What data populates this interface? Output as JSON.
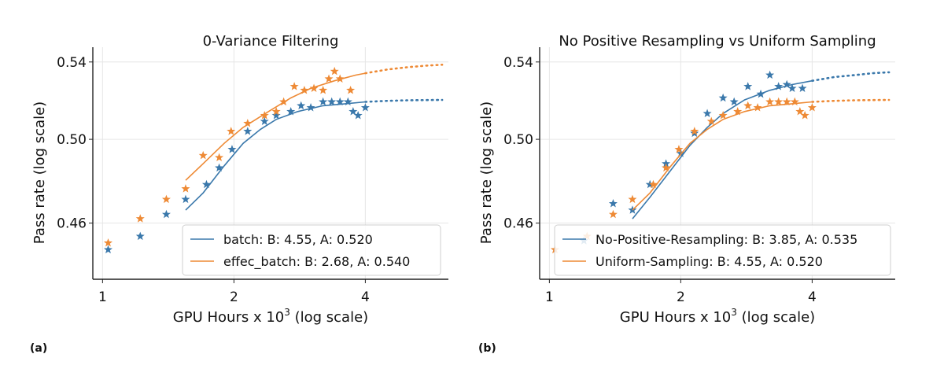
{
  "colors": {
    "blue": "#3a78ab",
    "orange": "#ee8a35"
  },
  "chart_data": [
    {
      "type": "scatter",
      "panel": "(a)",
      "title": "0-Variance Filtering",
      "xlabel": "GPU Hours x 10",
      "xlabel_sup": "3",
      "xlabel_suffix": " (log scale)",
      "ylabel": "Pass rate (log scale)",
      "xscale": "log",
      "yscale": "log",
      "xlim": [
        0.95,
        6.2
      ],
      "ylim": [
        0.435,
        0.548
      ],
      "xticks": [
        1,
        2,
        4
      ],
      "xtick_labels": [
        "1",
        "2",
        "4"
      ],
      "yticks": [
        0.46,
        0.5,
        0.54
      ],
      "ytick_labels": [
        "0.46",
        "0.50",
        "0.54"
      ],
      "legend_position": "lower-right",
      "series": [
        {
          "name": "batch: B: 4.55, A: 0.520",
          "color": "blue",
          "points": [
            [
              1.03,
              0.448
            ],
            [
              1.22,
              0.454
            ],
            [
              1.4,
              0.464
            ],
            [
              1.55,
              0.471
            ],
            [
              1.73,
              0.478
            ],
            [
              1.85,
              0.486
            ],
            [
              1.98,
              0.495
            ],
            [
              2.15,
              0.504
            ],
            [
              2.35,
              0.509
            ],
            [
              2.5,
              0.512
            ],
            [
              2.7,
              0.514
            ],
            [
              2.85,
              0.517
            ],
            [
              3.0,
              0.516
            ],
            [
              3.2,
              0.519
            ],
            [
              3.35,
              0.519
            ],
            [
              3.5,
              0.519
            ],
            [
              3.65,
              0.519
            ],
            [
              3.75,
              0.514
            ],
            [
              3.85,
              0.512
            ],
            [
              4.0,
              0.516
            ]
          ],
          "fit": [
            [
              1.55,
              0.466
            ],
            [
              1.7,
              0.474
            ],
            [
              1.9,
              0.487
            ],
            [
              2.1,
              0.498
            ],
            [
              2.3,
              0.505
            ],
            [
              2.5,
              0.51
            ],
            [
              2.8,
              0.514
            ],
            [
              3.2,
              0.517
            ],
            [
              3.6,
              0.518
            ],
            [
              4.0,
              0.519
            ]
          ],
          "extrap": [
            [
              4.0,
              0.519
            ],
            [
              4.5,
              0.5195
            ],
            [
              5.0,
              0.5198
            ],
            [
              5.5,
              0.5199
            ],
            [
              6.0,
              0.52
            ]
          ]
        },
        {
          "name": "effec_batch: B: 2.68, A: 0.540",
          "color": "orange",
          "points": [
            [
              1.03,
              0.451
            ],
            [
              1.22,
              0.462
            ],
            [
              1.4,
              0.471
            ],
            [
              1.55,
              0.476
            ],
            [
              1.7,
              0.492
            ],
            [
              1.85,
              0.491
            ],
            [
              1.97,
              0.504
            ],
            [
              2.15,
              0.508
            ],
            [
              2.35,
              0.512
            ],
            [
              2.5,
              0.514
            ],
            [
              2.6,
              0.519
            ],
            [
              2.75,
              0.527
            ],
            [
              2.9,
              0.525
            ],
            [
              3.05,
              0.526
            ],
            [
              3.2,
              0.525
            ],
            [
              3.3,
              0.531
            ],
            [
              3.4,
              0.535
            ],
            [
              3.5,
              0.531
            ],
            [
              3.7,
              0.525
            ]
          ],
          "fit": [
            [
              1.55,
              0.48
            ],
            [
              1.7,
              0.488
            ],
            [
              1.9,
              0.498
            ],
            [
              2.1,
              0.506
            ],
            [
              2.4,
              0.514
            ],
            [
              2.7,
              0.521
            ],
            [
              3.0,
              0.526
            ],
            [
              3.4,
              0.53
            ],
            [
              3.8,
              0.533
            ],
            [
              4.0,
              0.534
            ]
          ],
          "extrap": [
            [
              4.0,
              0.534
            ],
            [
              4.5,
              0.536
            ],
            [
              5.0,
              0.5372
            ],
            [
              5.5,
              0.538
            ],
            [
              6.0,
              0.5385
            ]
          ]
        }
      ]
    },
    {
      "type": "scatter",
      "panel": "(b)",
      "title": "No Positive Resampling vs Uniform Sampling",
      "xlabel": "GPU Hours x 10",
      "xlabel_sup": "3",
      "xlabel_suffix": " (log scale)",
      "ylabel": "Pass rate (log scale)",
      "xscale": "log",
      "yscale": "log",
      "xlim": [
        0.95,
        6.2
      ],
      "ylim": [
        0.435,
        0.548
      ],
      "xticks": [
        1,
        2,
        4
      ],
      "xtick_labels": [
        "1",
        "2",
        "4"
      ],
      "yticks": [
        0.46,
        0.5,
        0.54
      ],
      "ytick_labels": [
        "0.46",
        "0.50",
        "0.54"
      ],
      "legend_position": "lower-right",
      "series": [
        {
          "name": "No-Positive-Resampling: B: 3.85, A: 0.535",
          "color": "blue",
          "points": [
            [
              1.2,
              0.452
            ],
            [
              1.4,
              0.469
            ],
            [
              1.55,
              0.466
            ],
            [
              1.7,
              0.478
            ],
            [
              1.85,
              0.488
            ],
            [
              2.0,
              0.493
            ],
            [
              2.15,
              0.503
            ],
            [
              2.3,
              0.513
            ],
            [
              2.5,
              0.521
            ],
            [
              2.65,
              0.519
            ],
            [
              2.85,
              0.527
            ],
            [
              3.05,
              0.523
            ],
            [
              3.2,
              0.533
            ],
            [
              3.35,
              0.527
            ],
            [
              3.5,
              0.528
            ],
            [
              3.6,
              0.526
            ],
            [
              3.8,
              0.526
            ]
          ],
          "fit": [
            [
              1.55,
              0.462
            ],
            [
              1.7,
              0.472
            ],
            [
              1.9,
              0.485
            ],
            [
              2.1,
              0.497
            ],
            [
              2.3,
              0.506
            ],
            [
              2.5,
              0.513
            ],
            [
              2.8,
              0.52
            ],
            [
              3.2,
              0.525
            ],
            [
              3.6,
              0.528
            ],
            [
              4.0,
              0.53
            ]
          ],
          "extrap": [
            [
              4.0,
              0.53
            ],
            [
              4.5,
              0.532
            ],
            [
              5.0,
              0.533
            ],
            [
              5.5,
              0.534
            ],
            [
              6.0,
              0.5345
            ]
          ]
        },
        {
          "name": "Uniform-Sampling: B: 4.55, A: 0.520",
          "color": "orange",
          "points": [
            [
              1.03,
              0.448
            ],
            [
              1.22,
              0.454
            ],
            [
              1.4,
              0.464
            ],
            [
              1.55,
              0.471
            ],
            [
              1.73,
              0.478
            ],
            [
              1.85,
              0.486
            ],
            [
              1.98,
              0.495
            ],
            [
              2.15,
              0.504
            ],
            [
              2.35,
              0.509
            ],
            [
              2.5,
              0.512
            ],
            [
              2.7,
              0.514
            ],
            [
              2.85,
              0.517
            ],
            [
              3.0,
              0.516
            ],
            [
              3.2,
              0.519
            ],
            [
              3.35,
              0.519
            ],
            [
              3.5,
              0.519
            ],
            [
              3.65,
              0.519
            ],
            [
              3.75,
              0.514
            ],
            [
              3.85,
              0.512
            ],
            [
              4.0,
              0.516
            ]
          ],
          "fit": [
            [
              1.55,
              0.466
            ],
            [
              1.7,
              0.474
            ],
            [
              1.9,
              0.487
            ],
            [
              2.1,
              0.498
            ],
            [
              2.3,
              0.505
            ],
            [
              2.5,
              0.51
            ],
            [
              2.8,
              0.514
            ],
            [
              3.2,
              0.517
            ],
            [
              3.6,
              0.518
            ],
            [
              4.0,
              0.519
            ]
          ],
          "extrap": [
            [
              4.0,
              0.519
            ],
            [
              4.5,
              0.5195
            ],
            [
              5.0,
              0.5198
            ],
            [
              5.5,
              0.5199
            ],
            [
              6.0,
              0.52
            ]
          ]
        }
      ]
    }
  ]
}
